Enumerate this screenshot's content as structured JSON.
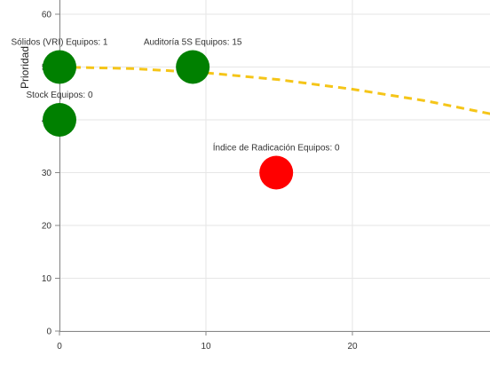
{
  "chart_data": {
    "type": "scatter",
    "title": "",
    "xlabel": "",
    "ylabel": "Prioridad",
    "xlim": [
      0,
      29.5
    ],
    "ylim": [
      0,
      60
    ],
    "x_ticks": [
      "0",
      "10",
      "20"
    ],
    "y_ticks": [
      "0",
      "10",
      "20",
      "30",
      "40",
      "50",
      "60"
    ],
    "grid": true,
    "colors": {
      "good": "#008000",
      "bad": "#ff0000",
      "trend": "#f5c518",
      "grid": "#e6e6e6",
      "axis": "#888888"
    },
    "points": [
      {
        "label": "Sólidos (VRI) Equipos: 1",
        "x": 0,
        "y": 50,
        "color": "#008000"
      },
      {
        "label": "Auditoría 5S Equipos: 15",
        "x": 9.1,
        "y": 50,
        "color": "#008000"
      },
      {
        "label": "Stock Equipos: 0",
        "x": 0,
        "y": 40,
        "color": "#008000"
      },
      {
        "label": "Índice de Radicación Equipos: 0",
        "x": 14.8,
        "y": 30,
        "color": "#ff0000"
      }
    ],
    "trend_line": {
      "x": [
        0,
        5,
        10,
        15,
        20,
        25,
        29.5
      ],
      "y": [
        50.0,
        49.7,
        48.9,
        47.6,
        45.8,
        43.6,
        41.1
      ]
    }
  }
}
